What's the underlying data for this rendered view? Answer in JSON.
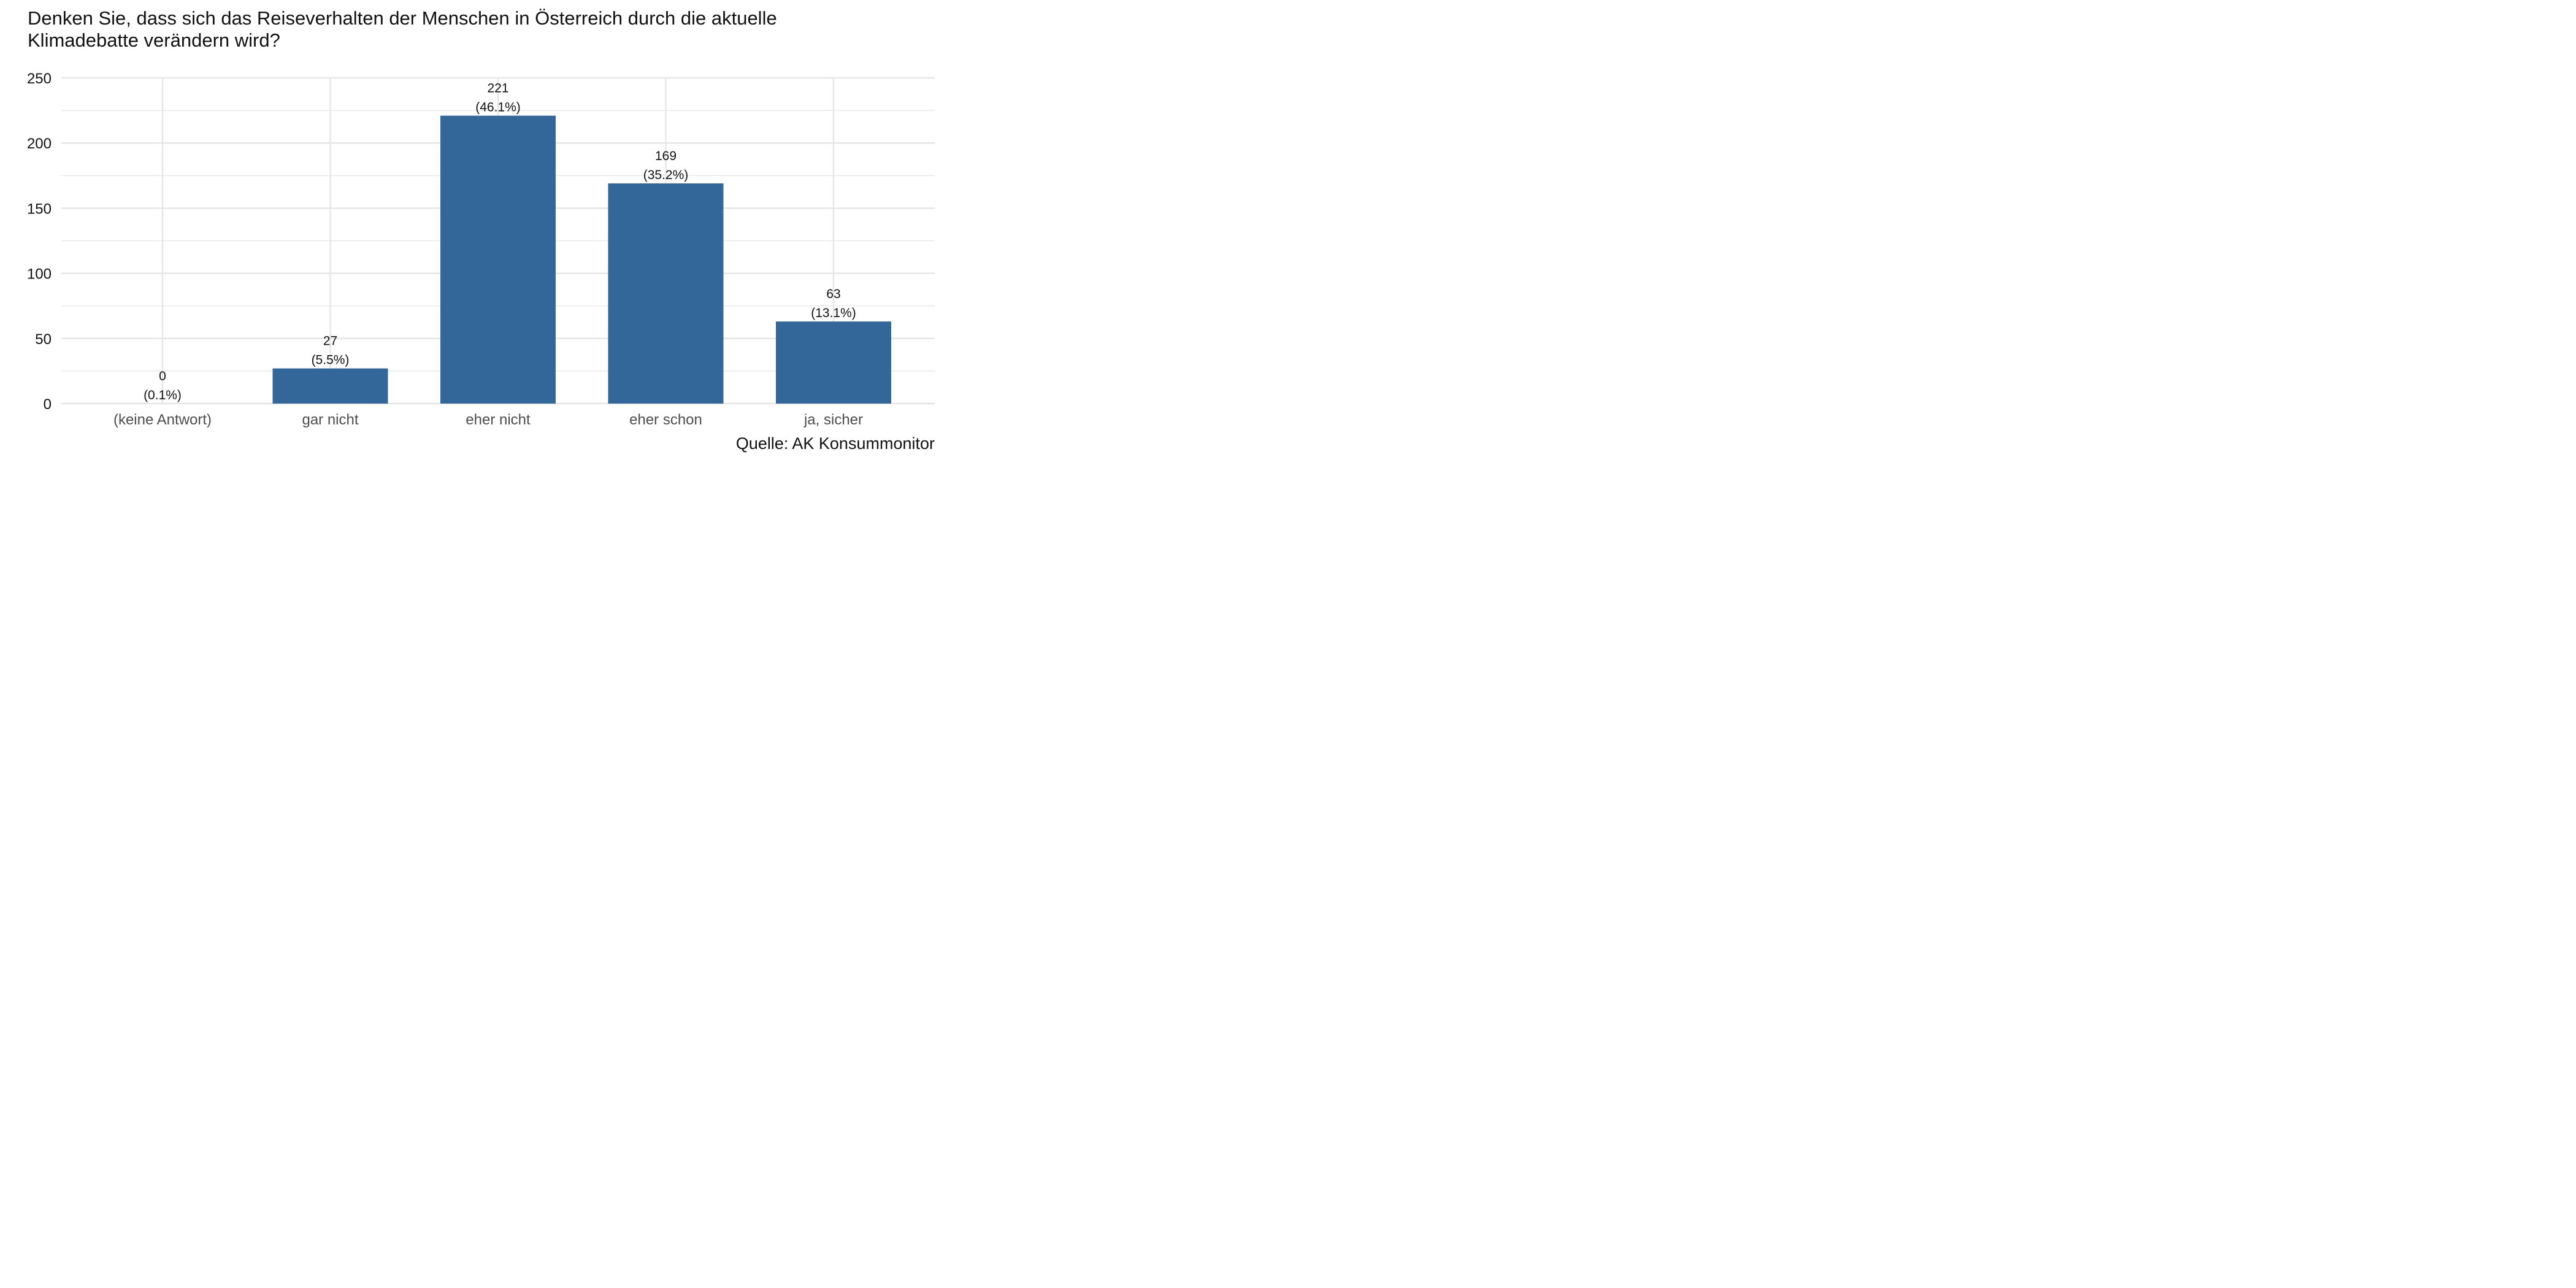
{
  "title_lines": [
    "Denken Sie, dass sich das Reiseverhalten der Menschen in Österreich durch die aktuelle",
    "Klimadebatte verändern wird?"
  ],
  "caption": "Quelle: AK Konsummonitor",
  "colors": {
    "bar": "#336699",
    "grid": "#e6e6e6",
    "axis_text": "#4d4d4d",
    "label_text": "#111111"
  },
  "chart_data": {
    "type": "bar",
    "title": "Denken Sie, dass sich das Reiseverhalten der Menschen in Österreich durch die aktuelle Klimadebatte verändern wird?",
    "categories": [
      "(keine Antwort)",
      "gar nicht",
      "eher nicht",
      "eher schon",
      "ja, sicher"
    ],
    "values": [
      0,
      27,
      221,
      169,
      63
    ],
    "value_labels": [
      "0",
      "27",
      "221",
      "169",
      "63"
    ],
    "percent_labels": [
      "(0.1%)",
      "(5.5%)",
      "(46.1%)",
      "(35.2%)",
      "(13.1%)"
    ],
    "xlabel": "",
    "ylabel": "",
    "ylim": [
      0,
      250
    ],
    "yticks": [
      0,
      50,
      100,
      150,
      200,
      250
    ],
    "grid": true,
    "legend": "none"
  }
}
